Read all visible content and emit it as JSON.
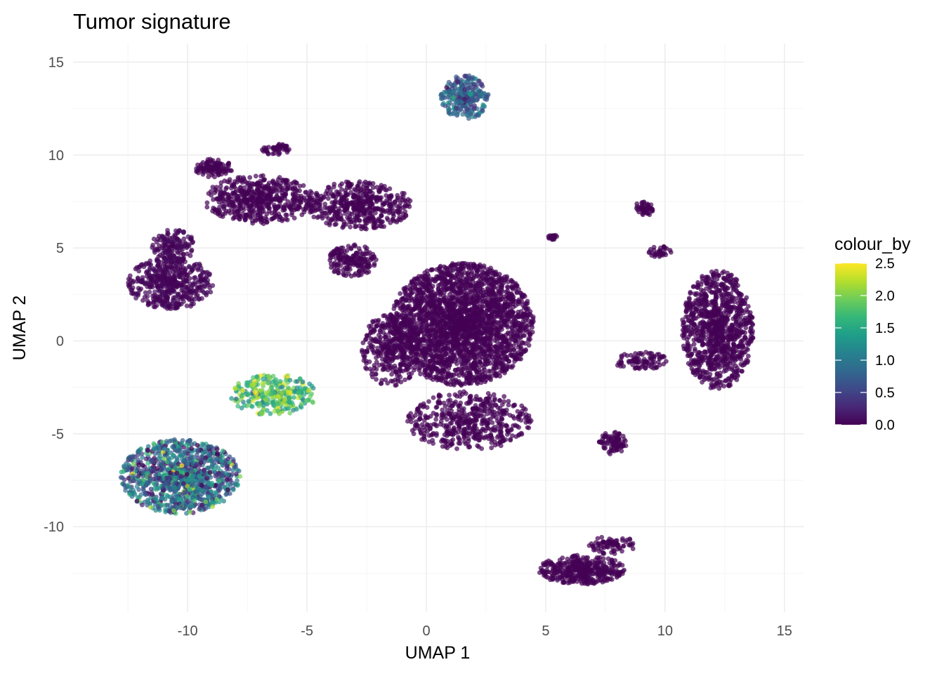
{
  "chart_data": {
    "type": "scatter",
    "title": "Tumor signature",
    "xlabel": "UMAP 1",
    "ylabel": "UMAP 2",
    "xlim": [
      -14.8,
      15.8
    ],
    "ylim": [
      -14.6,
      16.0
    ],
    "x_ticks": [
      -10,
      -5,
      0,
      5,
      10,
      15
    ],
    "x_tick_labels": [
      "-10",
      "-5",
      "0",
      "5",
      "10",
      "15"
    ],
    "y_ticks": [
      -10,
      -5,
      0,
      5,
      10,
      15
    ],
    "y_tick_labels": [
      "-10",
      "-5",
      "0",
      "5",
      "10",
      "15"
    ],
    "grid": true,
    "legend": {
      "title": "colour_by",
      "placement": "right",
      "min": 0.0,
      "max": 2.5,
      "ticks": [
        0.0,
        0.5,
        1.0,
        1.5,
        2.0,
        2.5
      ],
      "tick_labels": [
        "0.0",
        "0.5",
        "1.0",
        "1.5",
        "2.0",
        "2.5"
      ],
      "colormap": [
        "#440154",
        "#482878",
        "#3E4A89",
        "#31688E",
        "#26828E",
        "#1F9E89",
        "#35B779",
        "#6DCD59",
        "#B4DE2C",
        "#FDE725"
      ]
    },
    "clusters": [
      {
        "center": [
          1.5,
          0.9
        ],
        "spread": [
          3.0,
          3.3
        ],
        "n": 2600,
        "value": 0.0,
        "value_sd": 0.02
      },
      {
        "center": [
          -1.5,
          -0.5
        ],
        "spread": [
          1.2,
          2.0
        ],
        "n": 350,
        "value": 0.0,
        "value_sd": 0.02
      },
      {
        "center": [
          1.8,
          -4.3
        ],
        "spread": [
          2.6,
          1.6
        ],
        "n": 500,
        "value": 0.0,
        "value_sd": 0.02
      },
      {
        "center": [
          -7.0,
          7.6
        ],
        "spread": [
          2.3,
          1.3
        ],
        "n": 550,
        "value": 0.0,
        "value_sd": 0.02
      },
      {
        "center": [
          -2.8,
          7.3
        ],
        "spread": [
          2.2,
          1.3
        ],
        "n": 500,
        "value": 0.0,
        "value_sd": 0.02
      },
      {
        "center": [
          -8.9,
          9.3
        ],
        "spread": [
          0.8,
          0.5
        ],
        "n": 120,
        "value": 0.0,
        "value_sd": 0.02
      },
      {
        "center": [
          -6.3,
          10.3
        ],
        "spread": [
          0.6,
          0.3
        ],
        "n": 50,
        "value": 0.0,
        "value_sd": 0.02
      },
      {
        "center": [
          -3.1,
          4.3
        ],
        "spread": [
          1.0,
          0.9
        ],
        "n": 180,
        "value": 0.0,
        "value_sd": 0.02
      },
      {
        "center": [
          -10.7,
          3.1
        ],
        "spread": [
          1.8,
          1.4
        ],
        "n": 500,
        "value": 0.03,
        "value_sd": 0.04
      },
      {
        "center": [
          -10.6,
          5.1
        ],
        "spread": [
          0.9,
          0.9
        ],
        "n": 150,
        "value": 0.03,
        "value_sd": 0.04
      },
      {
        "center": [
          -10.3,
          -7.3
        ],
        "spread": [
          2.5,
          2.0
        ],
        "n": 1100,
        "value": 0.85,
        "value_sd": 0.55
      },
      {
        "center": [
          -6.4,
          -2.9
        ],
        "spread": [
          1.8,
          1.1
        ],
        "n": 300,
        "value": 1.75,
        "value_sd": 0.4
      },
      {
        "center": [
          1.6,
          13.1
        ],
        "spread": [
          1.0,
          1.2
        ],
        "n": 280,
        "value": 0.75,
        "value_sd": 0.3
      },
      {
        "center": [
          12.2,
          0.6
        ],
        "spread": [
          1.5,
          3.2
        ],
        "n": 1000,
        "value": 0.0,
        "value_sd": 0.02
      },
      {
        "center": [
          9.0,
          -1.1
        ],
        "spread": [
          1.2,
          0.5
        ],
        "n": 90,
        "value": 0.0,
        "value_sd": 0.02
      },
      {
        "center": [
          7.8,
          -5.5
        ],
        "spread": [
          0.6,
          0.6
        ],
        "n": 90,
        "value": 0.0,
        "value_sd": 0.02
      },
      {
        "center": [
          6.5,
          -12.3
        ],
        "spread": [
          1.8,
          0.8
        ],
        "n": 400,
        "value": 0.0,
        "value_sd": 0.02
      },
      {
        "center": [
          7.8,
          -11.0
        ],
        "spread": [
          1.0,
          0.5
        ],
        "n": 80,
        "value": 0.0,
        "value_sd": 0.02
      },
      {
        "center": [
          9.1,
          7.1
        ],
        "spread": [
          0.4,
          0.4
        ],
        "n": 50,
        "value": 0.0,
        "value_sd": 0.02
      },
      {
        "center": [
          9.8,
          4.8
        ],
        "spread": [
          0.5,
          0.3
        ],
        "n": 35,
        "value": 0.0,
        "value_sd": 0.02
      },
      {
        "center": [
          5.3,
          5.6
        ],
        "spread": [
          0.2,
          0.15
        ],
        "n": 18,
        "value": 0.0,
        "value_sd": 0.02
      }
    ]
  }
}
